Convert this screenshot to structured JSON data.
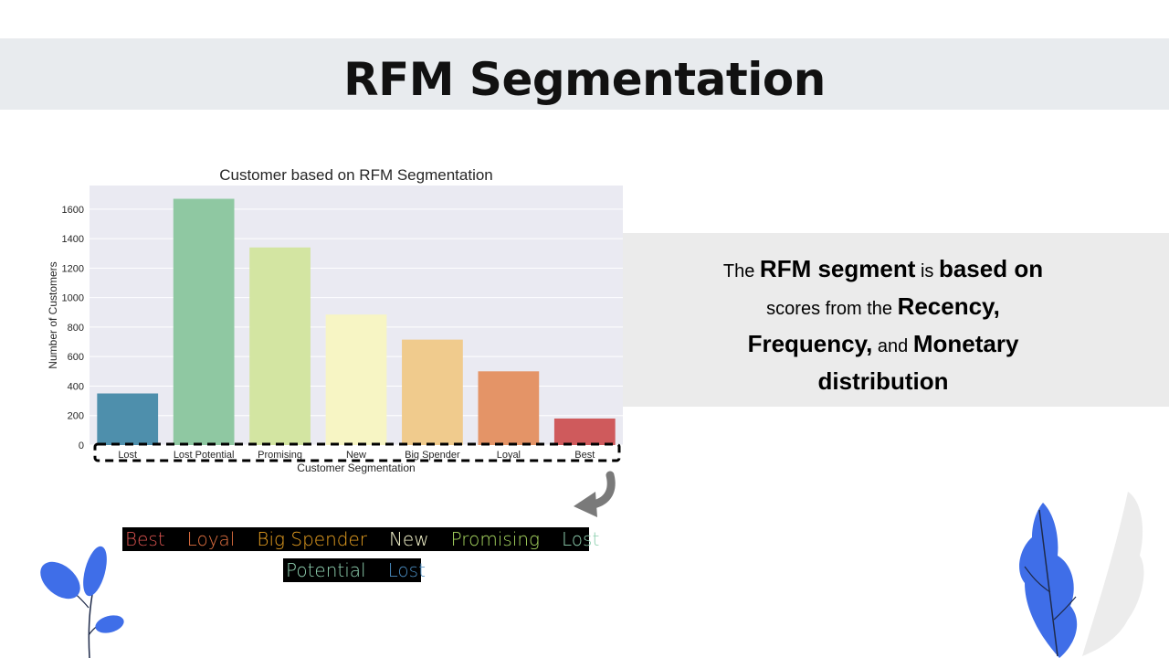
{
  "slide": {
    "title": "RFM Segmentation",
    "description_parts": [
      "The ",
      "RFM segment",
      " is ",
      "based on",
      " scores from the ",
      "Recency,",
      " ",
      "Frequency,",
      " and ",
      "Monetary",
      " ",
      "distribution"
    ]
  },
  "legend_labels": [
    {
      "text": "Best",
      "color": "#d9534f"
    },
    {
      "text": "Loyal",
      "color": "#e07040"
    },
    {
      "text": "Big Spender",
      "color": "#e8a020"
    },
    {
      "text": "New",
      "color": "#fafad0"
    },
    {
      "text": "Promising",
      "color": "#a8d860"
    },
    {
      "text": "Lost",
      "color": "#8fd0b0"
    },
    {
      "text": "Potential",
      "color": "#8fd0b0"
    },
    {
      "text": "Lost",
      "color": "#4a8cc0"
    }
  ],
  "chart_data": {
    "type": "bar",
    "title": "Customer based on RFM Segmentation",
    "xlabel": "Customer Segmentation",
    "ylabel": "Number of Customers",
    "categories": [
      "Lost",
      "Lost Potential",
      "Promising",
      "New",
      "Big Spender",
      "Loyal",
      "Best"
    ],
    "values": [
      350,
      1670,
      1340,
      885,
      715,
      500,
      180
    ],
    "colors": [
      "#4e8fac",
      "#8fc8a2",
      "#d3e5a2",
      "#f7f5c4",
      "#f0cb8d",
      "#e49467",
      "#cf5a5c"
    ],
    "ylim": [
      0,
      1760
    ],
    "yticks": [
      0,
      200,
      400,
      600,
      800,
      1000,
      1200,
      1400,
      1600
    ],
    "grid": true,
    "background": "#eaeaf2"
  }
}
